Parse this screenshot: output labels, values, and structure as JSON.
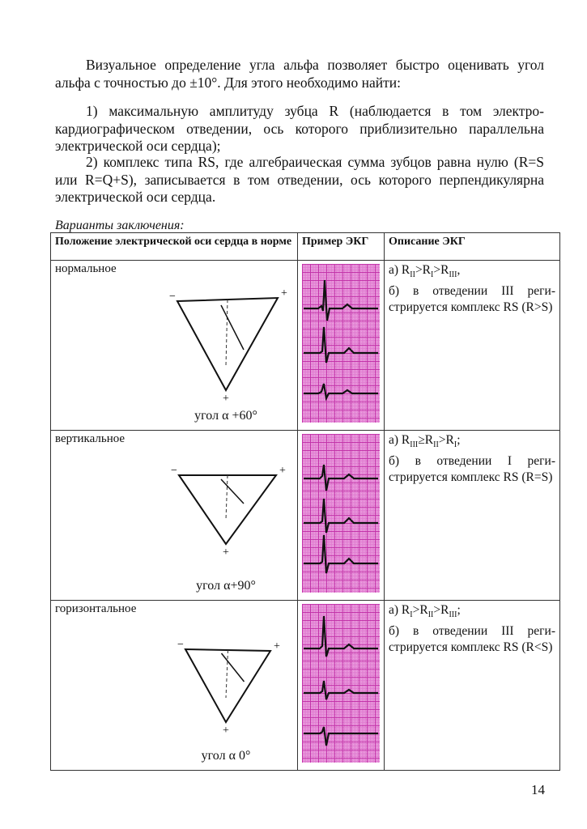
{
  "paragraphs": [
    "Визуальное определение угла альфа позволяет быстро оценивать угол альфа с точностью до ±10°. Для этого необходимо найти:",
    "1) максимальную амплитуду зубца R (наблюдается в том электро­кардиографическом отведении, ось которого приблизительно парал­лельна электрической оси сердца);",
    "2) комплекс типа RS, где алгебраическая сумма зубцов равна нулю (R=S или R=Q+S), записывается в том отведении, ось которого перпендикулярна электрической оси сердца."
  ],
  "caption": "Варианты заключения:",
  "table": {
    "headers": [
      "Положение электрической оси сердца в норме",
      "Пример ЭКГ",
      "Описание ЭКГ"
    ],
    "rows": [
      {
        "position": "нормальное",
        "angle": "угол α +60°",
        "desc_a": [
          "а) R",
          "II",
          ">R",
          "I",
          ">R",
          "III",
          ","
        ],
        "desc_b": "б) в отведении III реги­стрируется комплекс RS (R>S)"
      },
      {
        "position": "вертикальное",
        "angle": "угол α+90°",
        "desc_a": [
          "а) R",
          "III",
          "≥R",
          "II",
          ">R",
          "I",
          ";"
        ],
        "desc_b": "б) в отведении I реги­стрируется комплекс RS (R=S)"
      },
      {
        "position": "горизонтальное",
        "angle": "угол α 0°",
        "desc_a": [
          "а) R",
          "I",
          ">R",
          "II",
          ">R",
          "III",
          ";"
        ],
        "desc_b": "б) в отведении III реги­стрируется комплекс RS (R<S)"
      }
    ]
  },
  "page_number": "14"
}
